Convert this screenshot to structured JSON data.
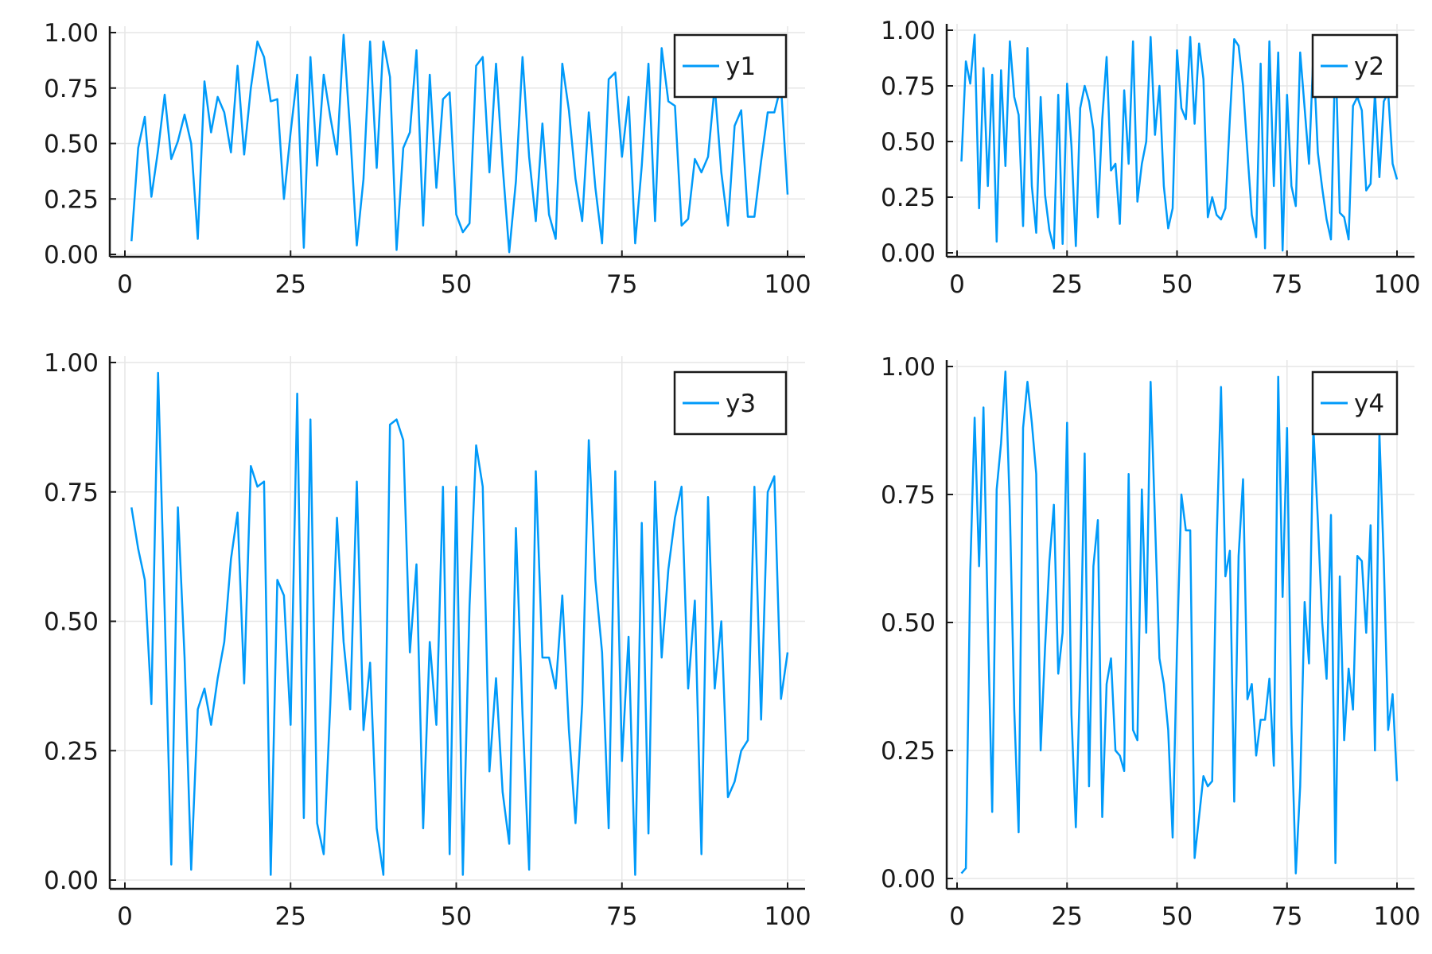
{
  "chart_data": [
    {
      "type": "line",
      "title": "",
      "xlabel": "",
      "ylabel": "",
      "xlim": [
        0,
        100
      ],
      "ylim": [
        0,
        1
      ],
      "xticks": [
        "0",
        "25",
        "50",
        "75",
        "100"
      ],
      "yticks": [
        "0.00",
        "0.25",
        "0.50",
        "0.75",
        "1.00"
      ],
      "grid": true,
      "legend_position": "top-right",
      "series": [
        {
          "name": "y1",
          "color": "#009af9",
          "x": [
            1,
            2,
            3,
            4,
            5,
            6,
            7,
            8,
            9,
            10,
            11,
            12,
            13,
            14,
            15,
            16,
            17,
            18,
            19,
            20,
            21,
            22,
            23,
            24,
            25,
            26,
            27,
            28,
            29,
            30,
            31,
            32,
            33,
            34,
            35,
            36,
            37,
            38,
            39,
            40,
            41,
            42,
            43,
            44,
            45,
            46,
            47,
            48,
            49,
            50,
            51,
            52,
            53,
            54,
            55,
            56,
            57,
            58,
            59,
            60,
            61,
            62,
            63,
            64,
            65,
            66,
            67,
            68,
            69,
            70,
            71,
            72,
            73,
            74,
            75,
            76,
            77,
            78,
            79,
            80,
            81,
            82,
            83,
            84,
            85,
            86,
            87,
            88,
            89,
            90,
            91,
            92,
            93,
            94,
            95,
            96,
            97,
            98,
            99,
            100
          ],
          "values": [
            0.06,
            0.48,
            0.62,
            0.26,
            0.47,
            0.72,
            0.43,
            0.51,
            0.63,
            0.5,
            0.07,
            0.78,
            0.55,
            0.71,
            0.64,
            0.46,
            0.85,
            0.45,
            0.75,
            0.96,
            0.89,
            0.69,
            0.7,
            0.25,
            0.55,
            0.81,
            0.03,
            0.89,
            0.4,
            0.81,
            0.62,
            0.45,
            0.99,
            0.55,
            0.04,
            0.34,
            0.96,
            0.39,
            0.96,
            0.8,
            0.02,
            0.48,
            0.55,
            0.92,
            0.13,
            0.81,
            0.3,
            0.7,
            0.73,
            0.18,
            0.1,
            0.14,
            0.85,
            0.89,
            0.37,
            0.86,
            0.4,
            0.01,
            0.33,
            0.89,
            0.44,
            0.15,
            0.59,
            0.18,
            0.07,
            0.86,
            0.65,
            0.34,
            0.15,
            0.64,
            0.3,
            0.05,
            0.79,
            0.82,
            0.44,
            0.71,
            0.05,
            0.4,
            0.86,
            0.15,
            0.93,
            0.69,
            0.67,
            0.13,
            0.16,
            0.43,
            0.37,
            0.44,
            0.76,
            0.37,
            0.13,
            0.58,
            0.65,
            0.17,
            0.17,
            0.42,
            0.64,
            0.64,
            0.76,
            0.27
          ]
        }
      ]
    },
    {
      "type": "line",
      "title": "",
      "xlabel": "",
      "ylabel": "",
      "xlim": [
        0,
        100
      ],
      "ylim": [
        0,
        1
      ],
      "xticks": [
        "0",
        "25",
        "50",
        "75",
        "100"
      ],
      "yticks": [
        "0.00",
        "0.25",
        "0.50",
        "0.75",
        "1.00"
      ],
      "grid": true,
      "legend_position": "top-right",
      "series": [
        {
          "name": "y2",
          "color": "#009af9",
          "x": [
            1,
            2,
            3,
            4,
            5,
            6,
            7,
            8,
            9,
            10,
            11,
            12,
            13,
            14,
            15,
            16,
            17,
            18,
            19,
            20,
            21,
            22,
            23,
            24,
            25,
            26,
            27,
            28,
            29,
            30,
            31,
            32,
            33,
            34,
            35,
            36,
            37,
            38,
            39,
            40,
            41,
            42,
            43,
            44,
            45,
            46,
            47,
            48,
            49,
            50,
            51,
            52,
            53,
            54,
            55,
            56,
            57,
            58,
            59,
            60,
            61,
            62,
            63,
            64,
            65,
            66,
            67,
            68,
            69,
            70,
            71,
            72,
            73,
            74,
            75,
            76,
            77,
            78,
            79,
            80,
            81,
            82,
            83,
            84,
            85,
            86,
            87,
            88,
            89,
            90,
            91,
            92,
            93,
            94,
            95,
            96,
            97,
            98,
            99,
            100
          ],
          "values": [
            0.41,
            0.86,
            0.76,
            0.98,
            0.2,
            0.83,
            0.3,
            0.8,
            0.05,
            0.82,
            0.39,
            0.95,
            0.7,
            0.62,
            0.12,
            0.92,
            0.3,
            0.09,
            0.7,
            0.26,
            0.1,
            0.02,
            0.71,
            0.04,
            0.76,
            0.48,
            0.03,
            0.65,
            0.75,
            0.68,
            0.55,
            0.16,
            0.6,
            0.88,
            0.37,
            0.4,
            0.13,
            0.73,
            0.4,
            0.95,
            0.23,
            0.4,
            0.5,
            0.97,
            0.53,
            0.75,
            0.3,
            0.11,
            0.2,
            0.91,
            0.65,
            0.6,
            0.97,
            0.58,
            0.94,
            0.78,
            0.16,
            0.25,
            0.17,
            0.15,
            0.2,
            0.6,
            0.96,
            0.93,
            0.75,
            0.45,
            0.17,
            0.07,
            0.85,
            0.02,
            0.95,
            0.3,
            0.9,
            0.01,
            0.71,
            0.3,
            0.21,
            0.9,
            0.65,
            0.4,
            0.9,
            0.45,
            0.29,
            0.15,
            0.06,
            0.93,
            0.18,
            0.16,
            0.06,
            0.66,
            0.7,
            0.64,
            0.28,
            0.31,
            0.72,
            0.34,
            0.68,
            0.72,
            0.4,
            0.33
          ]
        }
      ]
    },
    {
      "type": "line",
      "title": "",
      "xlabel": "",
      "ylabel": "",
      "xlim": [
        0,
        100
      ],
      "ylim": [
        0,
        1
      ],
      "xticks": [
        "0",
        "25",
        "50",
        "75",
        "100"
      ],
      "yticks": [
        "0.00",
        "0.25",
        "0.50",
        "0.75",
        "1.00"
      ],
      "grid": true,
      "legend_position": "top-right",
      "series": [
        {
          "name": "y3",
          "color": "#009af9",
          "x": [
            1,
            2,
            3,
            4,
            5,
            6,
            7,
            8,
            9,
            10,
            11,
            12,
            13,
            14,
            15,
            16,
            17,
            18,
            19,
            20,
            21,
            22,
            23,
            24,
            25,
            26,
            27,
            28,
            29,
            30,
            31,
            32,
            33,
            34,
            35,
            36,
            37,
            38,
            39,
            40,
            41,
            42,
            43,
            44,
            45,
            46,
            47,
            48,
            49,
            50,
            51,
            52,
            53,
            54,
            55,
            56,
            57,
            58,
            59,
            60,
            61,
            62,
            63,
            64,
            65,
            66,
            67,
            68,
            69,
            70,
            71,
            72,
            73,
            74,
            75,
            76,
            77,
            78,
            79,
            80,
            81,
            82,
            83,
            84,
            85,
            86,
            87,
            88,
            89,
            90,
            91,
            92,
            93,
            94,
            95,
            96,
            97,
            98,
            99,
            100
          ],
          "values": [
            0.72,
            0.64,
            0.58,
            0.34,
            0.98,
            0.52,
            0.03,
            0.72,
            0.43,
            0.02,
            0.33,
            0.37,
            0.3,
            0.39,
            0.46,
            0.62,
            0.71,
            0.38,
            0.8,
            0.76,
            0.77,
            0.01,
            0.58,
            0.55,
            0.3,
            0.94,
            0.12,
            0.89,
            0.11,
            0.05,
            0.34,
            0.7,
            0.46,
            0.33,
            0.77,
            0.29,
            0.42,
            0.1,
            0.01,
            0.88,
            0.89,
            0.85,
            0.44,
            0.61,
            0.1,
            0.46,
            0.3,
            0.76,
            0.05,
            0.76,
            0.01,
            0.53,
            0.84,
            0.76,
            0.21,
            0.39,
            0.17,
            0.07,
            0.68,
            0.32,
            0.02,
            0.79,
            0.43,
            0.43,
            0.37,
            0.55,
            0.29,
            0.11,
            0.34,
            0.85,
            0.58,
            0.44,
            0.1,
            0.79,
            0.23,
            0.47,
            0.01,
            0.69,
            0.09,
            0.77,
            0.43,
            0.6,
            0.7,
            0.76,
            0.37,
            0.54,
            0.05,
            0.74,
            0.37,
            0.5,
            0.16,
            0.19,
            0.25,
            0.27,
            0.76,
            0.31,
            0.75,
            0.78,
            0.35,
            0.44
          ]
        }
      ]
    },
    {
      "type": "line",
      "title": "",
      "xlabel": "",
      "ylabel": "",
      "xlim": [
        0,
        100
      ],
      "ylim": [
        0,
        1
      ],
      "xticks": [
        "0",
        "25",
        "50",
        "75",
        "100"
      ],
      "yticks": [
        "0.00",
        "0.25",
        "0.50",
        "0.75",
        "1.00"
      ],
      "grid": true,
      "legend_position": "top-right",
      "series": [
        {
          "name": "y4",
          "color": "#009af9",
          "x": [
            1,
            2,
            3,
            4,
            5,
            6,
            7,
            8,
            9,
            10,
            11,
            12,
            13,
            14,
            15,
            16,
            17,
            18,
            19,
            20,
            21,
            22,
            23,
            24,
            25,
            26,
            27,
            28,
            29,
            30,
            31,
            32,
            33,
            34,
            35,
            36,
            37,
            38,
            39,
            40,
            41,
            42,
            43,
            44,
            45,
            46,
            47,
            48,
            49,
            50,
            51,
            52,
            53,
            54,
            55,
            56,
            57,
            58,
            59,
            60,
            61,
            62,
            63,
            64,
            65,
            66,
            67,
            68,
            69,
            70,
            71,
            72,
            73,
            74,
            75,
            76,
            77,
            78,
            79,
            80,
            81,
            82,
            83,
            84,
            85,
            86,
            87,
            88,
            89,
            90,
            91,
            92,
            93,
            94,
            95,
            96,
            97,
            98,
            99,
            100
          ],
          "values": [
            0.01,
            0.02,
            0.6,
            0.9,
            0.61,
            0.92,
            0.5,
            0.13,
            0.76,
            0.85,
            0.99,
            0.72,
            0.33,
            0.09,
            0.88,
            0.97,
            0.89,
            0.79,
            0.25,
            0.45,
            0.62,
            0.73,
            0.4,
            0.48,
            0.89,
            0.32,
            0.1,
            0.4,
            0.83,
            0.18,
            0.61,
            0.7,
            0.12,
            0.38,
            0.43,
            0.25,
            0.24,
            0.21,
            0.79,
            0.29,
            0.27,
            0.76,
            0.48,
            0.97,
            0.7,
            0.43,
            0.38,
            0.29,
            0.08,
            0.45,
            0.75,
            0.68,
            0.68,
            0.04,
            0.12,
            0.2,
            0.18,
            0.19,
            0.66,
            0.96,
            0.59,
            0.64,
            0.15,
            0.63,
            0.78,
            0.35,
            0.38,
            0.24,
            0.31,
            0.31,
            0.39,
            0.22,
            0.98,
            0.55,
            0.88,
            0.3,
            0.01,
            0.18,
            0.54,
            0.42,
            0.88,
            0.7,
            0.5,
            0.39,
            0.71,
            0.03,
            0.59,
            0.27,
            0.41,
            0.33,
            0.63,
            0.62,
            0.48,
            0.69,
            0.25,
            0.87,
            0.62,
            0.29,
            0.36,
            0.19
          ]
        }
      ]
    }
  ]
}
